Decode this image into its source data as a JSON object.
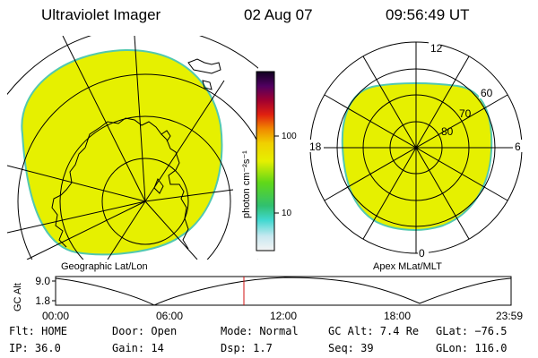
{
  "header": {
    "instrument": "Ultraviolet Imager",
    "date": "02 Aug 07",
    "time": "09:56:49 UT"
  },
  "colors": {
    "fill": "#e6f000",
    "edge": "#52c8b0",
    "line": "#000000",
    "marker": "#d21010"
  },
  "left_panel": {
    "label": "Geographic Lat/Lon"
  },
  "right_panel": {
    "label": "Apex MLat/MLT",
    "mlt_labels": [
      "12",
      "18",
      "6",
      "0"
    ],
    "lat_labels": [
      "60",
      "70",
      "80"
    ]
  },
  "colorbar": {
    "unit_label": "photon cm⁻²s⁻¹",
    "tick_labels": [
      "100",
      "10"
    ]
  },
  "altitude_plot": {
    "ylabel": "GC Alt",
    "y_ticks": [
      "9.0",
      "1.8"
    ],
    "x_ticks": [
      "00:00",
      "06:00",
      "12:00",
      "18:00",
      "23:59"
    ]
  },
  "status": {
    "filter": "Flt: HOME",
    "ip": "IP: 36.0",
    "door": "Door: Open",
    "gain": "Gain: 14",
    "mode": "Mode: Normal",
    "dsp": "Dsp:    1.7",
    "gc_alt": "GC Alt: 7.4 Re",
    "seq": "Seq: 39",
    "glat": "GLat: −76.5",
    "glon": "GLon: 116.0"
  }
}
